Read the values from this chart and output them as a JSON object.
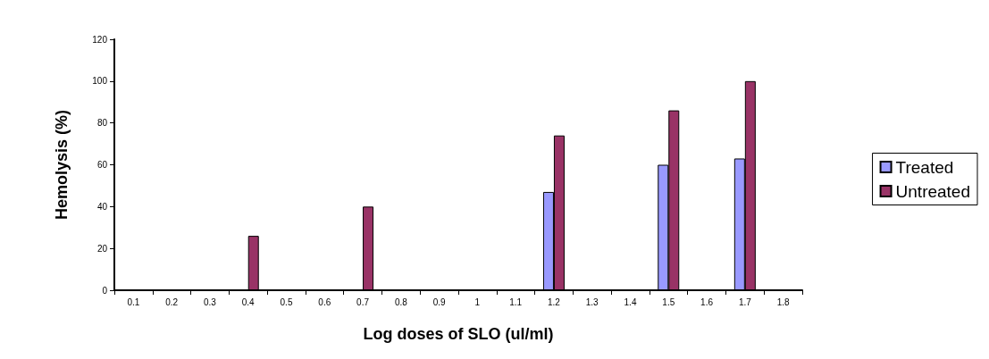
{
  "chart_data": {
    "type": "bar",
    "xlabel": "Log doses of SLO (ul/ml)",
    "ylabel": "Hemolysis (%)",
    "categories": [
      "0.1",
      "0.2",
      "0.3",
      "0.4",
      "0.5",
      "0.6",
      "0.7",
      "0.8",
      "0.9",
      "1",
      "1.1",
      "1.2",
      "1.3",
      "1.4",
      "1.5",
      "1.6",
      "1.7",
      "1.8"
    ],
    "series": [
      {
        "name": "Treated",
        "color": "#9999ff",
        "values": [
          null,
          null,
          null,
          null,
          null,
          null,
          null,
          null,
          null,
          null,
          null,
          47,
          null,
          null,
          60,
          null,
          63,
          null
        ]
      },
      {
        "name": "Untreated",
        "color": "#993366",
        "values": [
          null,
          null,
          null,
          26,
          null,
          null,
          40,
          null,
          null,
          null,
          null,
          74,
          null,
          null,
          86,
          null,
          100,
          null
        ]
      }
    ],
    "ylim": [
      0,
      120
    ],
    "yticks": [
      0,
      20,
      40,
      60,
      80,
      100,
      120
    ],
    "grid": false,
    "legend": "right"
  }
}
